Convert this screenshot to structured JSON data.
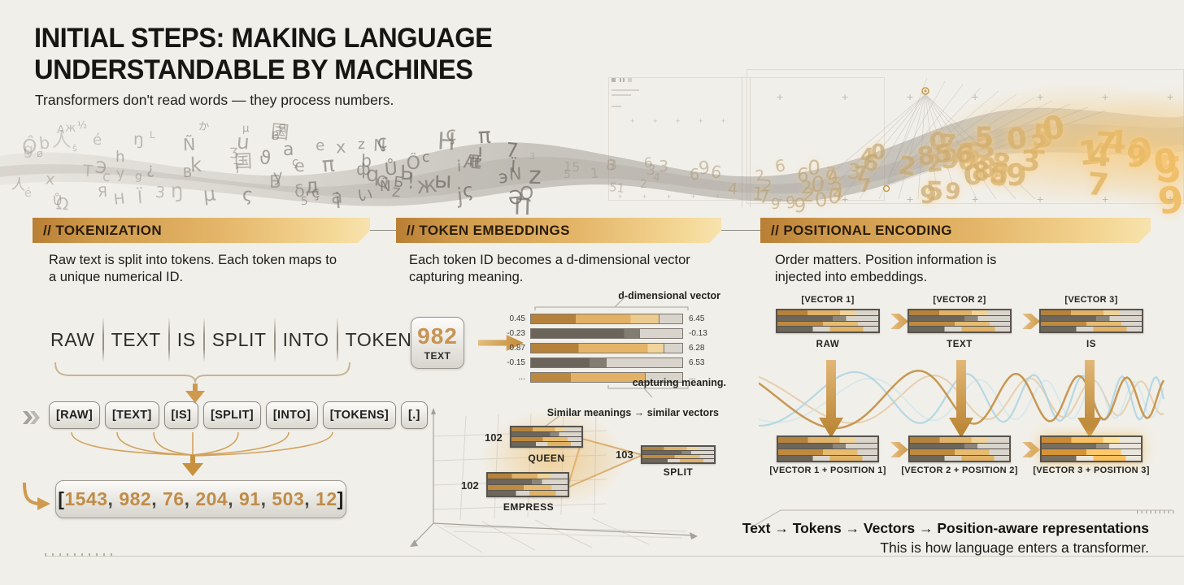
{
  "header": {
    "title_line1": "INITIAL STEPS: MAKING LANGUAGE",
    "title_line2": "UNDERSTANDABLE BY MACHINES",
    "subtitle": "Transformers don't read words — they process numbers."
  },
  "stream": {
    "left_glyphs": [
      "π",
      "a",
      "Ï",
      "Б",
      "ç",
      "b",
      "Я",
      "μ",
      "g",
      "i",
      "x",
      "Ů",
      "ж",
      "π",
      "ç",
      "z",
      "Β",
      "ς",
      "T",
      "ŋ",
      "H",
      "N",
      "Ñ",
      "c",
      "人",
      "у",
      "Q",
      "Ô",
      "é",
      "国",
      "!",
      "e",
      "z",
      "ŝ",
      "ϑ",
      "u",
      "t",
      "h",
      "j",
      "Э",
      "ы",
      "k",
      "э",
      "か",
      "Ə",
      "L",
      "д",
      "ф",
      "Ʒ",
      "¿",
      "½",
      "Æ",
      "ø",
      "Ω",
      "δ",
      "A",
      "5",
      "3",
      "7",
      "q",
      "Ь",
      "П",
      "い"
    ],
    "digits": [
      "0",
      "1",
      "2",
      "3",
      "4",
      "5",
      "6",
      "7",
      "8",
      "9"
    ],
    "big_digits": [
      "17",
      "85",
      "15",
      "51"
    ],
    "plus_mark": "+"
  },
  "tokenization": {
    "header": "// TOKENIZATION",
    "description": "Raw text is split into tokens. Each token maps to a unique numerical ID.",
    "sentence_words": [
      "RAW",
      "TEXT",
      "IS",
      "SPLIT",
      "INTO",
      "TOKENS."
    ],
    "tokens": [
      "[RAW]",
      "[TEXT]",
      "[IS]",
      "[SPLIT]",
      "[INTO]",
      "[TOKENS]",
      "[.]"
    ],
    "ids": [
      "1543",
      "982",
      "76",
      "204",
      "91",
      "503",
      "12"
    ],
    "ids_open": "[",
    "ids_close": "]",
    "ids_sep": ", "
  },
  "embeddings": {
    "header": "// TOKEN EMBEDDINGS",
    "description": "Each token ID becomes a d-dimensional vector capturing meaning.",
    "token": {
      "id": "982",
      "word": "TEXT"
    },
    "vector_label_top": "d-dimensional vector",
    "vector_label_bottom": "capturing meaning.",
    "rows": [
      {
        "left": "0.45",
        "right": "6.45",
        "fill": 85,
        "tone": "fill-gold-a"
      },
      {
        "left": "-0.23",
        "right": "-0.13",
        "fill": 72,
        "tone": "fill-dark-a"
      },
      {
        "left": "0.87",
        "right": "6.28",
        "fill": 88,
        "tone": "fill-gold-b"
      },
      {
        "left": "-0.15",
        "right": "6.53",
        "fill": 50,
        "tone": "fill-dark-b"
      },
      {
        "left": "...",
        "right": "...",
        "fill": 76,
        "tone": "fill-gold-c"
      }
    ],
    "similarity_note": "Similar meanings → similar vectors",
    "points": [
      {
        "id": "102",
        "word": "QUEEN"
      },
      {
        "id": "102",
        "word": "EMPRESS"
      },
      {
        "id": "103",
        "word": "SPLIT"
      }
    ]
  },
  "positional": {
    "header": "// POSITIONAL ENCODING",
    "description": "Order matters. Position information is injected into embeddings.",
    "top": [
      {
        "label": "[VECTOR 1]",
        "word": "RAW"
      },
      {
        "label": "[VECTOR 2]",
        "word": "TEXT"
      },
      {
        "label": "[VECTOR 3]",
        "word": "IS"
      }
    ],
    "bottom": [
      {
        "label": "[VECTOR 1 + POSITION 1]"
      },
      {
        "label": "[VECTOR 2 + POSITION 2]"
      },
      {
        "label": "[VECTOR 3 + POSITION 3]"
      }
    ]
  },
  "footer": {
    "line1": "Text → Tokens → Vectors → Position-aware representations",
    "line2": "This is how language enters a transformer."
  },
  "colors": {
    "gold": "#c08a3e",
    "gold_light": "#e7bb70",
    "dark_bar": "#6d665b",
    "blue_wave": "#a8d2e2",
    "background": "#f1efe9"
  }
}
